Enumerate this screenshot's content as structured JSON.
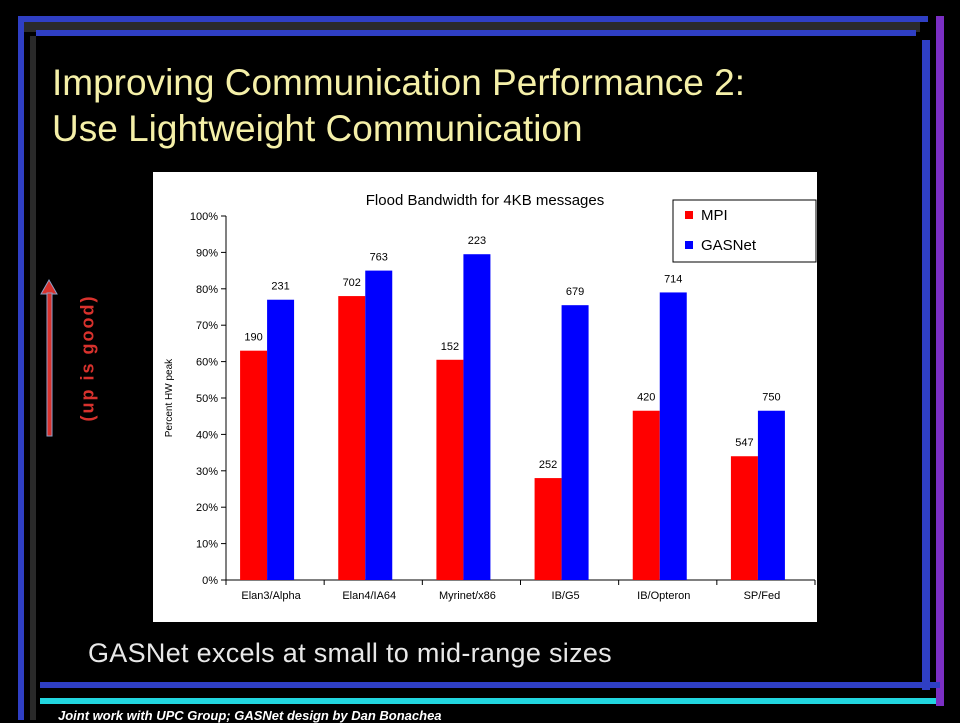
{
  "slide": {
    "title_line1": "Improving Communication Performance 2:",
    "title_line2": "Use Lightweight Communication",
    "side_label": "(up is good)",
    "caption": "GASNet excels at small to mid-range sizes",
    "footer": "Joint work with UPC Group; GASNet design by Dan Bonachea"
  },
  "colors": {
    "background": "#000000",
    "title": "#f5f0a8",
    "mpi": "#ff0000",
    "gasnet": "#0000ff",
    "arrow": "#d8322d",
    "frame_blue": "#2f3fc4",
    "frame_purple": "#7b2fc4",
    "frame_cyan": "#22d6e0",
    "frame_dark": "#3a3a3a"
  },
  "chart_data": {
    "type": "bar",
    "title": "Flood Bandwidth for 4KB messages",
    "ylabel": "Percent HW peak",
    "xlabel": "",
    "ylim": [
      0,
      100
    ],
    "yticks": [
      "0%",
      "10%",
      "20%",
      "30%",
      "40%",
      "50%",
      "60%",
      "70%",
      "80%",
      "90%",
      "100%"
    ],
    "categories": [
      "Elan3/Alpha",
      "Elan4/IA64",
      "Myrinet/x86",
      "IB/G5",
      "IB/Opteron",
      "SP/Fed"
    ],
    "legend_position": "top-right",
    "grid": false,
    "series": [
      {
        "name": "MPI",
        "color": "#ff0000",
        "values": [
          63,
          78,
          60.5,
          28,
          46.5,
          34
        ],
        "labels": [
          "190",
          "702",
          "152",
          "252",
          "420",
          "547"
        ]
      },
      {
        "name": "GASNet",
        "color": "#0000ff",
        "values": [
          77,
          85,
          89.5,
          75.5,
          79,
          46.5
        ],
        "labels": [
          "231",
          "763",
          "223",
          "679",
          "714",
          "750"
        ]
      }
    ]
  }
}
